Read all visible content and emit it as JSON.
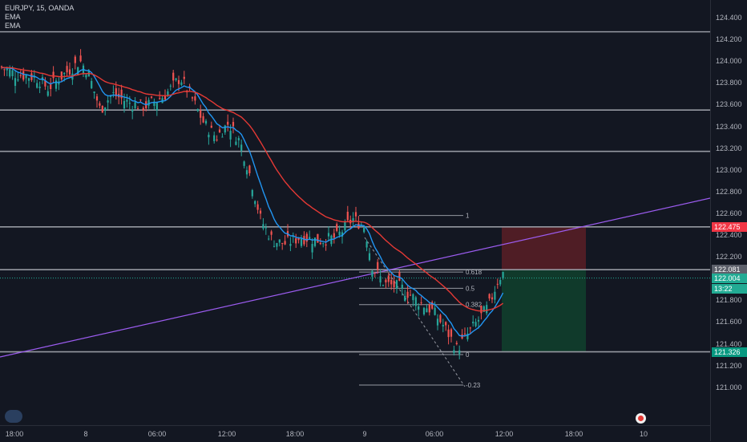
{
  "legend": {
    "symbol_line": "EURJPY, 15, OANDA",
    "indicator_1": "EMA",
    "indicator_2": "EMA"
  },
  "price_axis": {
    "ticks": [
      "124.400",
      "124.200",
      "124.000",
      "123.800",
      "123.600",
      "123.400",
      "123.200",
      "123.000",
      "122.800",
      "122.600",
      "122.400",
      "122.200",
      "122.000",
      "121.800",
      "121.600",
      "121.400",
      "121.200",
      "121.000"
    ],
    "badges": {
      "resistance": {
        "text": "122.475",
        "color": "#f23645"
      },
      "level": {
        "text": "122.081",
        "color": "#5d606b"
      },
      "last_price": {
        "text": "122.004",
        "color": "#22ab94"
      },
      "countdown": {
        "text": "13:22",
        "color": "#22ab94"
      },
      "target": {
        "text": "121.326",
        "color": "#089981"
      }
    }
  },
  "time_axis": {
    "labels": [
      "18:00",
      "8",
      "06:00",
      "12:00",
      "18:00",
      "9",
      "06:00",
      "12:00",
      "18:00",
      "10"
    ]
  },
  "fibonacci": {
    "levels": [
      {
        "label": "1",
        "price": 122.58
      },
      {
        "label": "0.618",
        "price": 122.06
      },
      {
        "label": "0.5",
        "price": 121.91
      },
      {
        "label": "0.382",
        "price": 121.76
      },
      {
        "label": "0",
        "price": 121.3
      },
      {
        "label": "-0.23",
        "price": 121.02
      }
    ]
  },
  "horizontal_levels": [
    124.27,
    123.55,
    123.17,
    122.475,
    122.081,
    121.326
  ],
  "trendline": {
    "from": {
      "time": "8 15:00",
      "price": 121.66
    },
    "to": {
      "time": "10 12:00",
      "price": 122.89
    }
  },
  "position": {
    "entry": 122.081,
    "stop": 122.475,
    "target": 121.326,
    "side": "short"
  },
  "colors": {
    "background": "#131722",
    "ema_fast": "#2196f3",
    "ema_slow": "#e53935",
    "candle_up": "#26a69a",
    "candle_down": "#ef5350",
    "trendline": "#9c5cf0",
    "levels": "#9598a1"
  },
  "chart_data": {
    "type": "candlestick",
    "symbol": "EURJPY",
    "interval": "15",
    "source": "OANDA",
    "y_range": [
      121.0,
      124.45
    ],
    "anchor_points": [
      {
        "x": 0,
        "price": 123.95
      },
      {
        "x": 20,
        "price": 123.88
      },
      {
        "x": 45,
        "price": 123.85
      },
      {
        "x": 60,
        "price": 123.75
      },
      {
        "x": 80,
        "price": 123.88
      },
      {
        "x": 100,
        "price": 124.0
      },
      {
        "x": 110,
        "price": 123.9
      },
      {
        "x": 125,
        "price": 123.55
      },
      {
        "x": 140,
        "price": 123.7
      },
      {
        "x": 160,
        "price": 123.62
      },
      {
        "x": 180,
        "price": 123.58
      },
      {
        "x": 205,
        "price": 123.68
      },
      {
        "x": 225,
        "price": 123.85
      },
      {
        "x": 240,
        "price": 123.65
      },
      {
        "x": 255,
        "price": 123.42
      },
      {
        "x": 270,
        "price": 123.3
      },
      {
        "x": 285,
        "price": 123.43
      },
      {
        "x": 300,
        "price": 123.25
      },
      {
        "x": 312,
        "price": 122.95
      },
      {
        "x": 325,
        "price": 122.55
      },
      {
        "x": 340,
        "price": 122.35
      },
      {
        "x": 355,
        "price": 122.32
      },
      {
        "x": 375,
        "price": 122.38
      },
      {
        "x": 400,
        "price": 122.35
      },
      {
        "x": 420,
        "price": 122.38
      },
      {
        "x": 440,
        "price": 122.55
      },
      {
        "x": 455,
        "price": 122.48
      },
      {
        "x": 465,
        "price": 122.1
      },
      {
        "x": 480,
        "price": 121.95
      },
      {
        "x": 500,
        "price": 121.92
      },
      {
        "x": 520,
        "price": 121.8
      },
      {
        "x": 540,
        "price": 121.7
      },
      {
        "x": 555,
        "price": 121.55
      },
      {
        "x": 570,
        "price": 121.35
      },
      {
        "x": 580,
        "price": 121.45
      },
      {
        "x": 595,
        "price": 121.6
      },
      {
        "x": 610,
        "price": 121.75
      },
      {
        "x": 622,
        "price": 122.0
      },
      {
        "x": 628,
        "price": 122.05
      }
    ]
  }
}
